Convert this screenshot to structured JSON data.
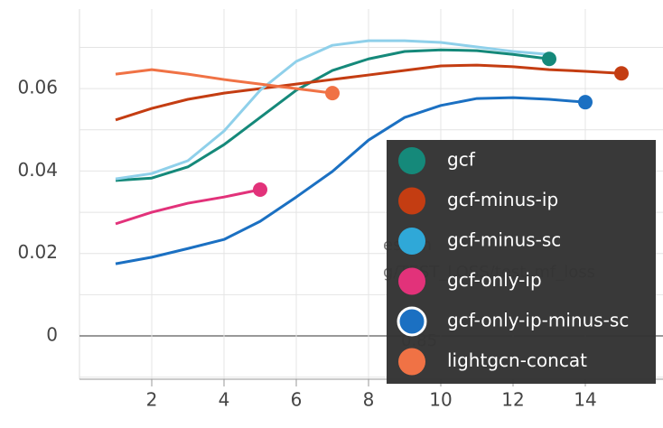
{
  "chart_data": {
    "type": "line",
    "xlim": [
      0,
      16.15
    ],
    "ylim": [
      -0.0105,
      0.0793
    ],
    "xticks": [
      2,
      4,
      6,
      8,
      10,
      12,
      14
    ],
    "yticks": [
      0,
      0.02,
      0.04,
      0.06
    ],
    "yminor": [
      -0.01,
      0.01,
      0.03,
      0.05,
      0.07
    ],
    "grid": true,
    "legend": "bottom-right",
    "annotations": [
      "est_m",
      "g/TEST_LOSS/test_mf_loss",
      "0.85"
    ],
    "series": [
      {
        "name": "gcf",
        "color": "#15897a",
        "x": [
          1,
          2,
          3,
          4,
          5,
          6,
          7,
          8,
          9,
          10,
          11,
          12,
          13
        ],
        "values": [
          0.0377,
          0.0383,
          0.041,
          0.0464,
          0.053,
          0.0596,
          0.0644,
          0.0672,
          0.069,
          0.0694,
          0.0692,
          0.0683,
          0.0672
        ]
      },
      {
        "name": "gcf-minus-ip",
        "color": "#c43d12",
        "x": [
          1,
          2,
          3,
          4,
          5,
          6,
          7,
          8,
          9,
          10,
          11,
          12,
          13,
          14,
          15
        ],
        "values": [
          0.0524,
          0.0552,
          0.0574,
          0.0589,
          0.06,
          0.0611,
          0.0622,
          0.0633,
          0.0644,
          0.0655,
          0.0657,
          0.0653,
          0.0646,
          0.0642,
          0.0637
        ]
      },
      {
        "name": "gcf-minus-sc",
        "color": "#8fd0ea",
        "x": [
          1,
          2,
          3,
          4,
          5,
          6,
          7,
          8,
          9,
          10,
          11,
          12,
          13
        ],
        "values": [
          0.0381,
          0.0394,
          0.0425,
          0.0497,
          0.0596,
          0.0666,
          0.0705,
          0.0716,
          0.0716,
          0.0712,
          0.0701,
          0.069,
          0.0683
        ]
      },
      {
        "name": "gcf-only-ip",
        "color": "#e2327a",
        "x": [
          1,
          2,
          3,
          4,
          5
        ],
        "values": [
          0.0272,
          0.03,
          0.0322,
          0.0337,
          0.0355
        ]
      },
      {
        "name": "gcf-only-ip-minus-sc",
        "color": "#1b70c2",
        "x": [
          1,
          2,
          3,
          4,
          5,
          6,
          7,
          8,
          9,
          10,
          11,
          12,
          13,
          14
        ],
        "values": [
          0.0175,
          0.0191,
          0.0212,
          0.0234,
          0.0278,
          0.0337,
          0.0399,
          0.0475,
          0.053,
          0.0559,
          0.0576,
          0.0578,
          0.0574,
          0.0567
        ]
      },
      {
        "name": "lightgcn-concat",
        "color": "#f07245",
        "x": [
          1,
          2,
          3,
          4,
          5,
          6,
          7
        ],
        "values": [
          0.0635,
          0.0646,
          0.0635,
          0.0622,
          0.0611,
          0.06,
          0.0589
        ]
      }
    ]
  }
}
